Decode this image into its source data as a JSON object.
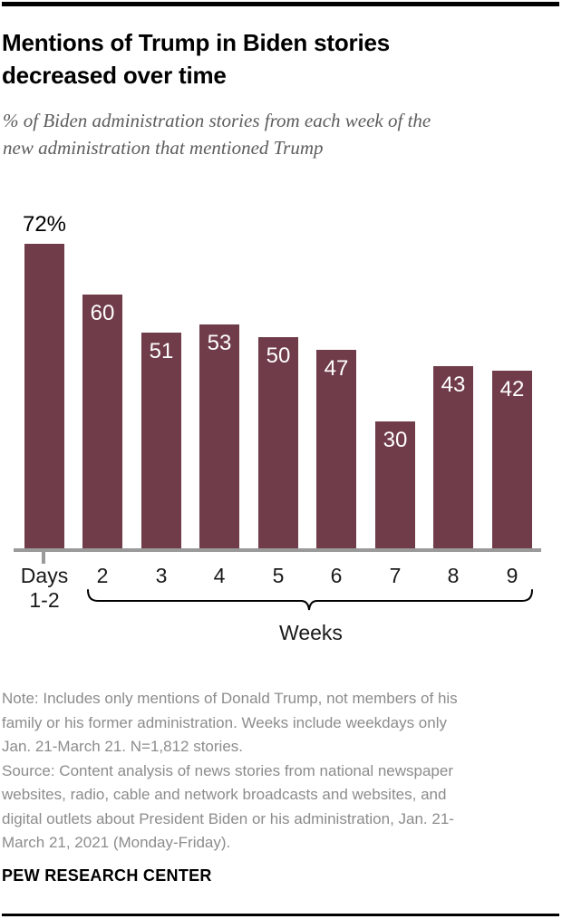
{
  "header": {
    "title_lines": [
      "Mentions of Trump in Biden stories",
      "decreased over time"
    ],
    "subtitle_lines": [
      "% of Biden administration stories from each week of the",
      "new administration that mentioned Trump"
    ]
  },
  "chart_data": {
    "type": "bar",
    "categories": [
      "Days 1-2",
      "2",
      "3",
      "4",
      "5",
      "6",
      "7",
      "8",
      "9"
    ],
    "values": [
      72,
      60,
      51,
      53,
      50,
      47,
      30,
      43,
      42
    ],
    "value_labels": [
      "72%",
      "60",
      "51",
      "53",
      "50",
      "47",
      "30",
      "43",
      "42"
    ],
    "x_first_label_lines": [
      "Days",
      "1-2"
    ],
    "x_group_label": "Weeks",
    "ylim": [
      0,
      75
    ],
    "grid": false,
    "legend": "none",
    "bar_color": "#703C49",
    "axis_color": "#9a9a9a",
    "label_color_inside": "#ffffff",
    "label_color_outside": "#000000"
  },
  "footer": {
    "note_lines": [
      "Note: Includes only mentions of Donald Trump, not members of his",
      "family or his former administration. Weeks include weekdays only",
      "Jan. 21-March 21. N=1,812 stories.",
      "Source: Content analysis of news stories from national newspaper",
      "websites, radio, cable and network broadcasts and websites, and",
      "digital outlets about President Biden or his administration, Jan. 21-",
      "March 21, 2021 (Monday-Friday)."
    ],
    "brand": "PEW RESEARCH CENTER"
  }
}
